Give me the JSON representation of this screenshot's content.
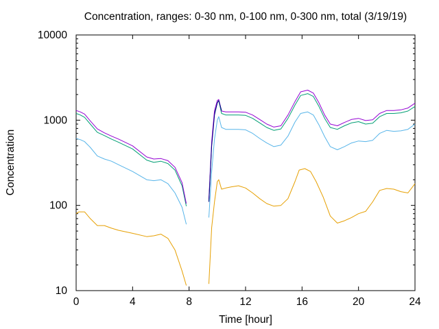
{
  "chart_data": {
    "type": "line",
    "title": "Concentration, ranges: 0-30 nm, 0-100 nm, 0-300 nm, total (3/19/19)",
    "xlabel": "Time [hour]",
    "ylabel": "Concentration",
    "xlim": [
      0,
      24
    ],
    "ylim": [
      10,
      10000
    ],
    "yscale": "log",
    "grid": false,
    "xticks": [
      0,
      4,
      8,
      12,
      16,
      20,
      24
    ],
    "xtick_labels": [
      "0",
      "4",
      "8",
      "12",
      "16",
      "20",
      "24"
    ],
    "yticks": [
      10,
      100,
      1000,
      10000
    ],
    "ytick_labels": [
      "10",
      "100",
      "1000",
      "10000"
    ],
    "series": [
      {
        "color": "#e69f00",
        "segments": [
          [
            [
              0,
              80
            ],
            [
              0.2,
              84
            ],
            [
              0.6,
              84
            ],
            [
              1.0,
              70
            ],
            [
              1.5,
              58
            ],
            [
              2.0,
              58
            ],
            [
              2.5,
              54
            ],
            [
              3.0,
              51
            ],
            [
              4.0,
              47
            ],
            [
              5.0,
              43
            ],
            [
              5.5,
              44
            ],
            [
              6.0,
              46
            ],
            [
              6.5,
              41
            ],
            [
              7.0,
              30
            ],
            [
              7.5,
              17
            ],
            [
              7.8,
              11.5
            ]
          ],
          [
            [
              9.4,
              12
            ],
            [
              9.6,
              55
            ],
            [
              9.8,
              110
            ],
            [
              10.0,
              190
            ],
            [
              10.1,
              200
            ],
            [
              10.3,
              155
            ],
            [
              10.6,
              160
            ],
            [
              11.0,
              165
            ],
            [
              11.5,
              170
            ],
            [
              12.0,
              160
            ],
            [
              12.5,
              140
            ],
            [
              13.0,
              120
            ],
            [
              13.5,
              105
            ],
            [
              14.0,
              98
            ],
            [
              14.5,
              100
            ],
            [
              15.0,
              120
            ],
            [
              15.5,
              190
            ],
            [
              15.8,
              260
            ],
            [
              16.2,
              270
            ],
            [
              16.6,
              250
            ],
            [
              17.0,
              190
            ],
            [
              17.5,
              125
            ],
            [
              18.0,
              75
            ],
            [
              18.5,
              62
            ],
            [
              19.0,
              66
            ],
            [
              19.5,
              72
            ],
            [
              20.0,
              80
            ],
            [
              20.5,
              85
            ],
            [
              21.0,
              110
            ],
            [
              21.5,
              150
            ],
            [
              22.0,
              158
            ],
            [
              22.5,
              155
            ],
            [
              23.0,
              145
            ],
            [
              23.5,
              140
            ],
            [
              24.0,
              180
            ]
          ]
        ]
      },
      {
        "color": "#56b4e9",
        "segments": [
          [
            [
              0,
              610
            ],
            [
              0.3,
              590
            ],
            [
              0.6,
              560
            ],
            [
              1.0,
              480
            ],
            [
              1.5,
              380
            ],
            [
              2.0,
              350
            ],
            [
              2.5,
              330
            ],
            [
              3.0,
              300
            ],
            [
              4.0,
              250
            ],
            [
              5.0,
              200
            ],
            [
              5.5,
              195
            ],
            [
              6.0,
              200
            ],
            [
              6.5,
              180
            ],
            [
              7.0,
              140
            ],
            [
              7.5,
              95
            ],
            [
              7.8,
              60
            ]
          ],
          [
            [
              9.4,
              72
            ],
            [
              9.6,
              250
            ],
            [
              9.8,
              600
            ],
            [
              10.0,
              1000
            ],
            [
              10.1,
              1100
            ],
            [
              10.3,
              820
            ],
            [
              10.6,
              780
            ],
            [
              11.0,
              780
            ],
            [
              11.5,
              780
            ],
            [
              12.0,
              770
            ],
            [
              12.5,
              700
            ],
            [
              13.0,
              610
            ],
            [
              13.5,
              540
            ],
            [
              14.0,
              490
            ],
            [
              14.5,
              510
            ],
            [
              15.0,
              650
            ],
            [
              15.5,
              950
            ],
            [
              15.9,
              1200
            ],
            [
              16.4,
              1250
            ],
            [
              16.8,
              1150
            ],
            [
              17.2,
              880
            ],
            [
              17.6,
              640
            ],
            [
              18.0,
              490
            ],
            [
              18.5,
              450
            ],
            [
              19.0,
              490
            ],
            [
              19.5,
              540
            ],
            [
              20.0,
              570
            ],
            [
              20.5,
              560
            ],
            [
              21.0,
              580
            ],
            [
              21.5,
              700
            ],
            [
              22.0,
              760
            ],
            [
              22.5,
              740
            ],
            [
              23.0,
              750
            ],
            [
              23.5,
              780
            ],
            [
              24.0,
              900
            ]
          ]
        ]
      },
      {
        "color": "#009e73",
        "segments": [
          [
            [
              0,
              1200
            ],
            [
              0.3,
              1150
            ],
            [
              0.6,
              1080
            ],
            [
              1.0,
              900
            ],
            [
              1.5,
              720
            ],
            [
              2.0,
              660
            ],
            [
              2.5,
              600
            ],
            [
              3.0,
              550
            ],
            [
              4.0,
              460
            ],
            [
              5.0,
              340
            ],
            [
              5.5,
              320
            ],
            [
              6.0,
              330
            ],
            [
              6.5,
              310
            ],
            [
              7.0,
              260
            ],
            [
              7.5,
              170
            ],
            [
              7.8,
              98
            ]
          ],
          [
            [
              9.4,
              110
            ],
            [
              9.6,
              520
            ],
            [
              9.8,
              1200
            ],
            [
              10.0,
              1600
            ],
            [
              10.1,
              1700
            ],
            [
              10.3,
              1200
            ],
            [
              10.6,
              1150
            ],
            [
              11.0,
              1150
            ],
            [
              11.5,
              1150
            ],
            [
              12.0,
              1140
            ],
            [
              12.5,
              1050
            ],
            [
              13.0,
              930
            ],
            [
              13.5,
              820
            ],
            [
              14.0,
              760
            ],
            [
              14.5,
              790
            ],
            [
              15.0,
              1050
            ],
            [
              15.5,
              1500
            ],
            [
              15.9,
              1950
            ],
            [
              16.4,
              2050
            ],
            [
              16.8,
              1900
            ],
            [
              17.2,
              1450
            ],
            [
              17.6,
              1050
            ],
            [
              18.0,
              820
            ],
            [
              18.5,
              780
            ],
            [
              19.0,
              860
            ],
            [
              19.5,
              930
            ],
            [
              20.0,
              960
            ],
            [
              20.5,
              900
            ],
            [
              21.0,
              920
            ],
            [
              21.5,
              1100
            ],
            [
              22.0,
              1200
            ],
            [
              22.5,
              1200
            ],
            [
              23.0,
              1220
            ],
            [
              23.5,
              1280
            ],
            [
              24.0,
              1450
            ]
          ]
        ]
      },
      {
        "color": "#9400d3",
        "segments": [
          [
            [
              0,
              1300
            ],
            [
              0.3,
              1250
            ],
            [
              0.6,
              1180
            ],
            [
              1.0,
              980
            ],
            [
              1.5,
              790
            ],
            [
              2.0,
              710
            ],
            [
              2.5,
              650
            ],
            [
              3.0,
              600
            ],
            [
              4.0,
              500
            ],
            [
              5.0,
              370
            ],
            [
              5.5,
              350
            ],
            [
              6.0,
              355
            ],
            [
              6.5,
              335
            ],
            [
              7.0,
              280
            ],
            [
              7.5,
              185
            ],
            [
              7.8,
              105
            ]
          ],
          [
            [
              9.4,
              118
            ],
            [
              9.6,
              560
            ],
            [
              9.8,
              1300
            ],
            [
              10.0,
              1700
            ],
            [
              10.1,
              1750
            ],
            [
              10.3,
              1280
            ],
            [
              10.6,
              1250
            ],
            [
              11.0,
              1250
            ],
            [
              11.5,
              1250
            ],
            [
              12.0,
              1240
            ],
            [
              12.5,
              1150
            ],
            [
              13.0,
              1020
            ],
            [
              13.5,
              900
            ],
            [
              14.0,
              830
            ],
            [
              14.5,
              860
            ],
            [
              15.0,
              1150
            ],
            [
              15.5,
              1650
            ],
            [
              15.9,
              2150
            ],
            [
              16.4,
              2250
            ],
            [
              16.8,
              2080
            ],
            [
              17.2,
              1600
            ],
            [
              17.6,
              1150
            ],
            [
              18.0,
              900
            ],
            [
              18.5,
              860
            ],
            [
              19.0,
              940
            ],
            [
              19.5,
              1020
            ],
            [
              20.0,
              1050
            ],
            [
              20.5,
              990
            ],
            [
              21.0,
              1010
            ],
            [
              21.5,
              1200
            ],
            [
              22.0,
              1300
            ],
            [
              22.5,
              1300
            ],
            [
              23.0,
              1320
            ],
            [
              23.5,
              1390
            ],
            [
              24.0,
              1580
            ]
          ]
        ]
      },
      {
        "color": "#000080",
        "segments": [
          [
            [
              9.4,
              110
            ],
            [
              9.6,
              500
            ],
            [
              9.8,
              1150
            ],
            [
              10.0,
              1600
            ],
            [
              10.1,
              1700
            ],
            [
              10.3,
              1300
            ]
          ]
        ]
      }
    ]
  }
}
